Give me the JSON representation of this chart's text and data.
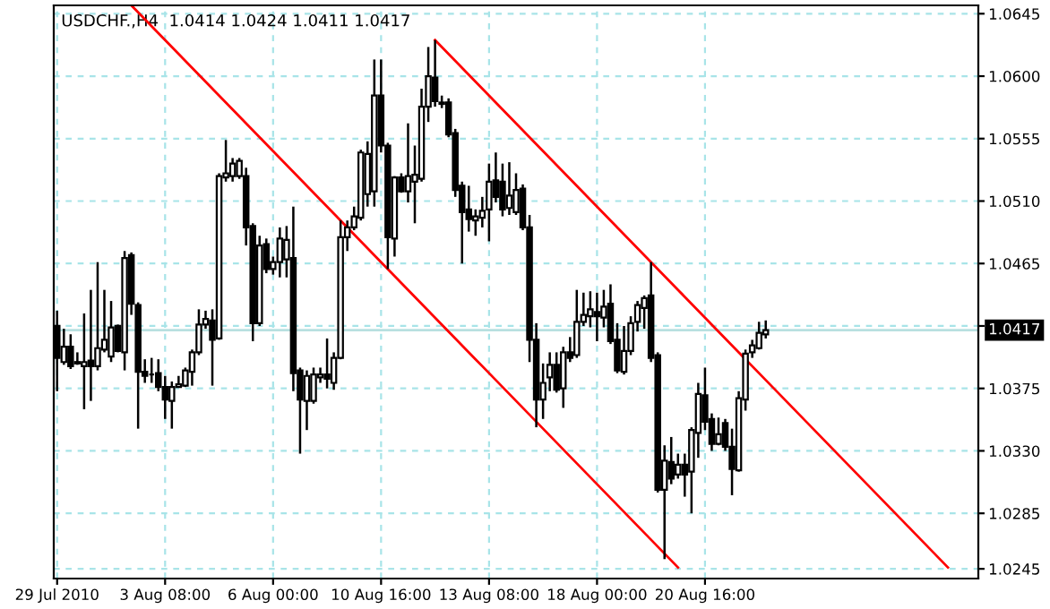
{
  "chart_data": {
    "type": "candlestick",
    "title": "USDCHF.,H4  1.0414 1.0424 1.0411 1.0417",
    "categories": [
      "29 Jul 2010",
      null,
      null,
      null,
      null,
      null,
      null,
      null,
      null,
      null,
      null,
      null,
      null,
      null,
      null,
      null,
      "3 Aug 08:00",
      null,
      null,
      null,
      null,
      null,
      null,
      null,
      null,
      null,
      null,
      null,
      null,
      null,
      null,
      null,
      "6 Aug 00:00",
      null,
      null,
      null,
      null,
      null,
      null,
      null,
      null,
      null,
      null,
      null,
      null,
      null,
      null,
      null,
      "10 Aug 16:00",
      null,
      null,
      null,
      null,
      null,
      null,
      null,
      null,
      null,
      null,
      null,
      null,
      null,
      null,
      null,
      "13 Aug 08:00",
      null,
      null,
      null,
      null,
      null,
      null,
      null,
      null,
      null,
      null,
      null,
      null,
      null,
      null,
      null,
      "18 Aug 00:00",
      null,
      null,
      null,
      null,
      null,
      null,
      null,
      null,
      null,
      null,
      null,
      null,
      null,
      null,
      null,
      "20 Aug 16:00",
      null,
      null,
      null,
      null,
      null,
      null,
      null,
      null,
      null,
      null,
      null,
      null,
      null,
      null,
      null,
      null,
      null,
      null,
      null,
      null,
      null,
      null,
      null,
      null,
      null,
      null,
      null,
      null,
      null,
      null,
      null,
      null,
      null,
      null,
      null,
      null,
      null,
      null,
      null,
      null
    ],
    "ohlc": [
      [
        1.042,
        1.0431,
        1.0373,
        1.0397
      ],
      [
        1.0394,
        1.0418,
        1.0392,
        1.0405
      ],
      [
        1.0405,
        1.0414,
        1.0389,
        1.0391
      ],
      [
        1.0394,
        1.0401,
        1.0392,
        1.0393
      ],
      [
        1.0391,
        1.0429,
        1.036,
        1.0394
      ],
      [
        1.0395,
        1.0446,
        1.0366,
        1.0391
      ],
      [
        1.0391,
        1.0466,
        1.0388,
        1.0404
      ],
      [
        1.0403,
        1.0446,
        1.0401,
        1.041
      ],
      [
        1.0398,
        1.0438,
        1.0394,
        1.0419
      ],
      [
        1.042,
        1.0421,
        1.0401,
        1.0402
      ],
      [
        1.0401,
        1.0474,
        1.0388,
        1.0469
      ],
      [
        1.0471,
        1.0473,
        1.0428,
        1.0436
      ],
      [
        1.0435,
        1.0437,
        1.0346,
        1.0387
      ],
      [
        1.0387,
        1.0396,
        1.0379,
        1.0384
      ],
      [
        1.0385,
        1.0397,
        1.0379,
        1.0385
      ],
      [
        1.0386,
        1.0396,
        1.0373,
        1.0376
      ],
      [
        1.0376,
        1.0384,
        1.0353,
        1.0367
      ],
      [
        1.0366,
        1.038,
        1.0346,
        1.0376
      ],
      [
        1.0376,
        1.0384,
        1.0376,
        1.0378
      ],
      [
        1.0377,
        1.039,
        1.0376,
        1.0388
      ],
      [
        1.0387,
        1.0403,
        1.0377,
        1.0401
      ],
      [
        1.0401,
        1.0432,
        1.0399,
        1.0421
      ],
      [
        1.0421,
        1.0431,
        1.0418,
        1.0425
      ],
      [
        1.0424,
        1.0432,
        1.0377,
        1.041
      ],
      [
        1.0411,
        1.053,
        1.041,
        1.0528
      ],
      [
        1.0527,
        1.0554,
        1.0524,
        1.053
      ],
      [
        1.0528,
        1.0541,
        1.0524,
        1.0537
      ],
      [
        1.0528,
        1.0541,
        1.0526,
        1.0539
      ],
      [
        1.0528,
        1.0534,
        1.0478,
        1.0491
      ],
      [
        1.0492,
        1.0494,
        1.0409,
        1.0422
      ],
      [
        1.0422,
        1.0485,
        1.042,
        1.0478
      ],
      [
        1.0479,
        1.0483,
        1.0458,
        1.0461
      ],
      [
        1.0461,
        1.047,
        1.0457,
        1.0466
      ],
      [
        1.0466,
        1.0491,
        1.0455,
        1.0483
      ],
      [
        1.0468,
        1.0492,
        1.0455,
        1.0482
      ],
      [
        1.0469,
        1.0506,
        1.0373,
        1.0386
      ],
      [
        1.0388,
        1.039,
        1.0328,
        1.0367
      ],
      [
        1.0366,
        1.0388,
        1.0345,
        1.0384
      ],
      [
        1.0366,
        1.039,
        1.0364,
        1.0385
      ],
      [
        1.0383,
        1.039,
        1.0379,
        1.0385
      ],
      [
        1.0385,
        1.0411,
        1.0375,
        1.0382
      ],
      [
        1.0379,
        1.0401,
        1.0374,
        1.0397
      ],
      [
        1.0397,
        1.0496,
        1.0396,
        1.0484
      ],
      [
        1.0484,
        1.0496,
        1.0474,
        1.0491
      ],
      [
        1.0491,
        1.0506,
        1.0489,
        1.0499
      ],
      [
        1.0498,
        1.0547,
        1.0496,
        1.0545
      ],
      [
        1.0515,
        1.0553,
        1.0506,
        1.0544
      ],
      [
        1.0517,
        1.0612,
        1.0506,
        1.0586
      ],
      [
        1.0586,
        1.0612,
        1.0545,
        1.055
      ],
      [
        1.055,
        1.0552,
        1.0461,
        1.0484
      ],
      [
        1.0483,
        1.0528,
        1.047,
        1.0527
      ],
      [
        1.0527,
        1.053,
        1.0516,
        1.0517
      ],
      [
        1.0517,
        1.0566,
        1.0509,
        1.0528
      ],
      [
        1.0524,
        1.055,
        1.0494,
        1.0529
      ],
      [
        1.0526,
        1.0591,
        1.0524,
        1.0578
      ],
      [
        1.0578,
        1.0621,
        1.0567,
        1.06
      ],
      [
        1.0599,
        1.0626,
        1.0578,
        1.0582
      ],
      [
        1.0581,
        1.0586,
        1.0577,
        1.058
      ],
      [
        1.0581,
        1.0584,
        1.0556,
        1.0558
      ],
      [
        1.0559,
        1.0562,
        1.0513,
        1.0518
      ],
      [
        1.0521,
        1.0524,
        1.0465,
        1.0502
      ],
      [
        1.0504,
        1.0521,
        1.0488,
        1.0497
      ],
      [
        1.0496,
        1.0504,
        1.0485,
        1.0499
      ],
      [
        1.0498,
        1.0513,
        1.0491,
        1.0503
      ],
      [
        1.0504,
        1.0537,
        1.0481,
        1.0524
      ],
      [
        1.0525,
        1.0545,
        1.0509,
        1.0513
      ],
      [
        1.0524,
        1.0537,
        1.0499,
        1.0504
      ],
      [
        1.0505,
        1.0538,
        1.05,
        1.0514
      ],
      [
        1.0502,
        1.053,
        1.05,
        1.0518
      ],
      [
        1.0519,
        1.0522,
        1.0489,
        1.0491
      ],
      [
        1.0491,
        1.05,
        1.0394,
        1.041
      ],
      [
        1.041,
        1.0422,
        1.0347,
        1.0367
      ],
      [
        1.0367,
        1.0393,
        1.0353,
        1.0379
      ],
      [
        1.0383,
        1.0401,
        1.0373,
        1.0392
      ],
      [
        1.0392,
        1.0401,
        1.0372,
        1.0374
      ],
      [
        1.0375,
        1.0405,
        1.0361,
        1.0401
      ],
      [
        1.0401,
        1.0412,
        1.0394,
        1.0397
      ],
      [
        1.0399,
        1.0446,
        1.0397,
        1.0423
      ],
      [
        1.0423,
        1.0444,
        1.042,
        1.0428
      ],
      [
        1.0427,
        1.0445,
        1.0419,
        1.0432
      ],
      [
        1.043,
        1.0444,
        1.0409,
        1.0427
      ],
      [
        1.0426,
        1.0446,
        1.0419,
        1.0434
      ],
      [
        1.0436,
        1.045,
        1.0407,
        1.0409
      ],
      [
        1.041,
        1.0422,
        1.0386,
        1.0388
      ],
      [
        1.0387,
        1.042,
        1.0385,
        1.0402
      ],
      [
        1.0402,
        1.0427,
        1.0399,
        1.0422
      ],
      [
        1.0423,
        1.0438,
        1.0416,
        1.0435
      ],
      [
        1.0433,
        1.0442,
        1.0418,
        1.044
      ],
      [
        1.0442,
        1.0466,
        1.0394,
        1.0397
      ],
      [
        1.0399,
        1.0401,
        1.03,
        1.0302
      ],
      [
        1.0302,
        1.0334,
        1.0252,
        1.0323
      ],
      [
        1.0322,
        1.034,
        1.0306,
        1.031
      ],
      [
        1.0313,
        1.0328,
        1.031,
        1.032
      ],
      [
        1.032,
        1.0328,
        1.0297,
        1.0313
      ],
      [
        1.0315,
        1.0347,
        1.0285,
        1.0345
      ],
      [
        1.0343,
        1.0379,
        1.0325,
        1.0371
      ],
      [
        1.037,
        1.039,
        1.0345,
        1.0351
      ],
      [
        1.0353,
        1.0357,
        1.033,
        1.0335
      ],
      [
        1.0335,
        1.0354,
        1.0334,
        1.0342
      ],
      [
        1.035,
        1.0353,
        1.033,
        1.0333
      ],
      [
        1.0333,
        1.0346,
        1.0298,
        1.0317
      ],
      [
        1.0316,
        1.0373,
        1.0315,
        1.0368
      ],
      [
        1.0367,
        1.0403,
        1.0359,
        1.04
      ],
      [
        1.0401,
        1.041,
        1.0397,
        1.0406
      ],
      [
        1.0404,
        1.0423,
        1.0403,
        1.0415
      ],
      [
        1.0414,
        1.0424,
        1.0411,
        1.0417
      ],
      null,
      null,
      null,
      null,
      null,
      null,
      null,
      null,
      null,
      null,
      null,
      null,
      null,
      null,
      null,
      null,
      null,
      null,
      null,
      null,
      null,
      null,
      null,
      null,
      null,
      null,
      null,
      null,
      null,
      null,
      null
    ],
    "series": [
      {
        "type": "line",
        "color": "#ff0000",
        "values": [
          null,
          null,
          null,
          null,
          null,
          null,
          null,
          null,
          null,
          null,
          null,
          1.0651,
          1.0646,
          1.0641,
          1.0636,
          1.0631,
          1.0626,
          1.0621,
          1.0616,
          1.0611,
          1.0606,
          1.0601,
          1.0596,
          1.0591,
          1.0586,
          1.0581,
          1.0576,
          1.0571,
          1.0566,
          1.0561,
          1.0556,
          1.0551,
          1.0546,
          1.0541,
          1.0536,
          1.0531,
          1.0526,
          1.0521,
          1.0516,
          1.0511,
          1.0506,
          1.0501,
          1.0496,
          1.0491,
          1.0486,
          1.0481,
          1.0476,
          1.0471,
          1.0466,
          1.0461,
          1.0456,
          1.0451,
          1.0446,
          1.0441,
          1.0436,
          1.0431,
          1.0426,
          1.0421,
          1.0416,
          1.0411,
          1.0406,
          1.0401,
          1.0396,
          1.0391,
          1.0386,
          1.0381,
          1.0376,
          1.0371,
          1.0366,
          1.0361,
          1.0356,
          1.0351,
          1.0346,
          1.0341,
          1.0336,
          1.0331,
          1.0326,
          1.0321,
          1.0316,
          1.0311,
          1.0306,
          1.0301,
          1.0296,
          1.0291,
          1.0286,
          1.0281,
          1.0276,
          1.0271,
          1.0266,
          1.0261,
          1.0256,
          1.0251,
          1.0246,
          null,
          null,
          null,
          null,
          null,
          null,
          null,
          null,
          null,
          null,
          null,
          null,
          null,
          null,
          null,
          null,
          null,
          null,
          null,
          null,
          null,
          null,
          null,
          null,
          null,
          null,
          null,
          null,
          null,
          null,
          null,
          null,
          null,
          null,
          null,
          null,
          null,
          null,
          null,
          null,
          null,
          null,
          null,
          null
        ]
      },
      {
        "type": "line",
        "color": "#ff0000",
        "values": [
          null,
          null,
          null,
          null,
          null,
          null,
          null,
          null,
          null,
          null,
          null,
          null,
          null,
          null,
          null,
          null,
          null,
          null,
          null,
          null,
          null,
          null,
          null,
          null,
          null,
          null,
          null,
          null,
          null,
          null,
          null,
          null,
          null,
          null,
          null,
          null,
          null,
          null,
          null,
          null,
          null,
          null,
          null,
          null,
          null,
          null,
          null,
          null,
          null,
          null,
          null,
          null,
          null,
          null,
          null,
          null,
          1.0626,
          1.0621,
          1.0616,
          1.0611,
          1.0606,
          1.0601,
          1.0596,
          1.0591,
          1.0586,
          1.0581,
          1.0576,
          1.0571,
          1.0566,
          1.0561,
          1.0556,
          1.0551,
          1.0546,
          1.0541,
          1.0536,
          1.0531,
          1.0526,
          1.0521,
          1.0516,
          1.0511,
          1.0506,
          1.0501,
          1.0496,
          1.0491,
          1.0486,
          1.0481,
          1.0476,
          1.0471,
          1.0466,
          1.0461,
          1.0456,
          1.0451,
          1.0446,
          1.0441,
          1.0436,
          1.0431,
          1.0426,
          1.0421,
          1.0416,
          1.0411,
          1.0406,
          1.0401,
          1.0396,
          1.0391,
          1.0386,
          1.0381,
          1.0376,
          1.0371,
          1.0366,
          1.0361,
          1.0356,
          1.0351,
          1.0346,
          1.0341,
          1.0336,
          1.0331,
          1.0326,
          1.0321,
          1.0316,
          1.0311,
          1.0306,
          1.0301,
          1.0296,
          1.0291,
          1.0286,
          1.0281,
          1.0276,
          1.0271,
          1.0266,
          1.0261,
          1.0256,
          1.0251,
          1.0246,
          null,
          null,
          null,
          null
        ]
      }
    ],
    "ylim": [
      1.0238,
      1.0651
    ],
    "yticks": [
      1.0645,
      {
        "value": 1.06,
        "label": "1.0600"
      },
      1.0555,
      {
        "value": 1.051,
        "label": "1.0510"
      },
      1.0465,
      {
        "value": 1.042,
        "label": null
      },
      1.0375,
      {
        "value": 1.033,
        "label": "1.0330"
      },
      1.0285,
      1.0245
    ],
    "ref_lines": [
      {
        "axis": "y",
        "value": 1.0417,
        "label": "1.0417",
        "color": "#b8e0e0"
      }
    ],
    "grid": true
  }
}
